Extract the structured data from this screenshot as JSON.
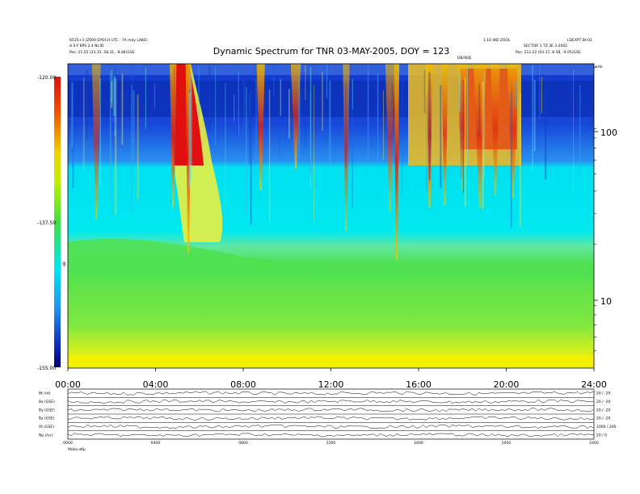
{
  "header": {
    "title": "Dynamic Spectrum for TNR 03-MAY-2005, DOY = 123",
    "top_left_line1": "6535+3 (Z000 EPOCH  UTC : 7A mdy  LAKE)",
    "top_left_line2": "A S-Y KPS 2.4 Nt.ID",
    "top_left_line3": "Pos:   21.55 (23.15, 58.31, -8.84)GSE",
    "top_right_line1": "1.10 WD ZOOL",
    "top_right_line2": "SECTOR 1 TZ 3E 3.2002",
    "top_right_line3": "Pos:   212.22 (03.17, 8.58, -9.05)GSE",
    "top_right_corner": "LDEXPT  Bt:01",
    "mid_tag": "DB/ADE"
  },
  "chart_data": {
    "type": "heatmap",
    "title": "Dynamic Spectrum for TNR 03-MAY-2005, DOY = 123",
    "x_ticks": [
      "00:00",
      "04:00",
      "08:00",
      "12:00",
      "16:00",
      "20:00",
      "24:00"
    ],
    "x_range_hours": [
      0,
      24
    ],
    "y_scale": "log",
    "y_range_khz": [
      4,
      210
    ],
    "y_ticks": [
      "100",
      "10"
    ],
    "y_unit_label": "kHz",
    "colorbar_ticks": [
      "-120.00",
      "-137.50",
      "-155.00"
    ],
    "colorbar_label": "dB",
    "colorbar_range_db": [
      -155,
      -120
    ],
    "colors": {
      "red": "#e01010",
      "yellow": "#f0f000",
      "green": "#50e050",
      "cyan": "#00e8f0",
      "light_blue": "#30a8f0",
      "blue": "#1040d8",
      "dark_blue": "#000080"
    },
    "bursts_hours": [
      1.3,
      4.8,
      5.5,
      8.8,
      10.4,
      12.7,
      14.7,
      15.0,
      16.5,
      17.2,
      18.0,
      18.8,
      19.5,
      20.3
    ],
    "panels": {
      "rows": [
        {
          "label": "Bt (nt)",
          "right": "20 / -20"
        },
        {
          "label": "Bx (GSE)",
          "right": "20 / -20"
        },
        {
          "label": "By (GSE)",
          "right": "20 / -20"
        },
        {
          "label": "Bz (GSE)",
          "right": "20 / -20"
        },
        {
          "label": "Vt (GSE)",
          "right": "1000 / 200"
        },
        {
          "label": "Np (/cc)",
          "right": "20 / 0"
        }
      ],
      "x_ticks": [
        "0000",
        "0400",
        "0800",
        "1200",
        "1600",
        "2000",
        "2400"
      ],
      "bottom_left": "Maka   oKp"
    }
  }
}
